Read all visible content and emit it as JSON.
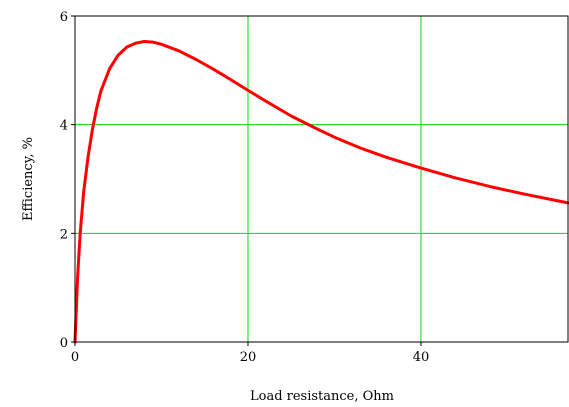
{
  "chart_data": {
    "type": "line",
    "title": "",
    "xlabel": "Load resistance, Ohm",
    "ylabel": "Efficiency, %",
    "xlim": [
      0,
      57
    ],
    "ylim": [
      0,
      6
    ],
    "x_ticks": [
      0,
      20,
      40
    ],
    "y_ticks": [
      0,
      2,
      4,
      6
    ],
    "x_tick_labels": [
      "0",
      "20",
      "40"
    ],
    "y_tick_labels": [
      "0",
      "2",
      "4",
      "6"
    ],
    "grid": true,
    "legend": "none",
    "colors": {
      "line": "#ff0000",
      "grid": "#00e000",
      "axes": "#000000",
      "background": "#ffffff"
    },
    "series": [
      {
        "x": [
          0,
          0.3,
          0.6,
          1,
          1.5,
          2,
          2.5,
          3,
          4,
          5,
          6,
          7,
          8,
          9,
          10,
          12,
          14,
          16,
          18,
          20,
          22,
          25,
          28,
          30,
          33,
          36,
          40,
          44,
          48,
          52,
          57
        ],
        "y": [
          0,
          1.2,
          2.0,
          2.75,
          3.4,
          3.9,
          4.3,
          4.62,
          5.03,
          5.28,
          5.43,
          5.5,
          5.53,
          5.52,
          5.48,
          5.36,
          5.2,
          5.02,
          4.83,
          4.63,
          4.44,
          4.16,
          3.92,
          3.77,
          3.57,
          3.4,
          3.2,
          3.02,
          2.86,
          2.72,
          2.56
        ]
      }
    ]
  }
}
